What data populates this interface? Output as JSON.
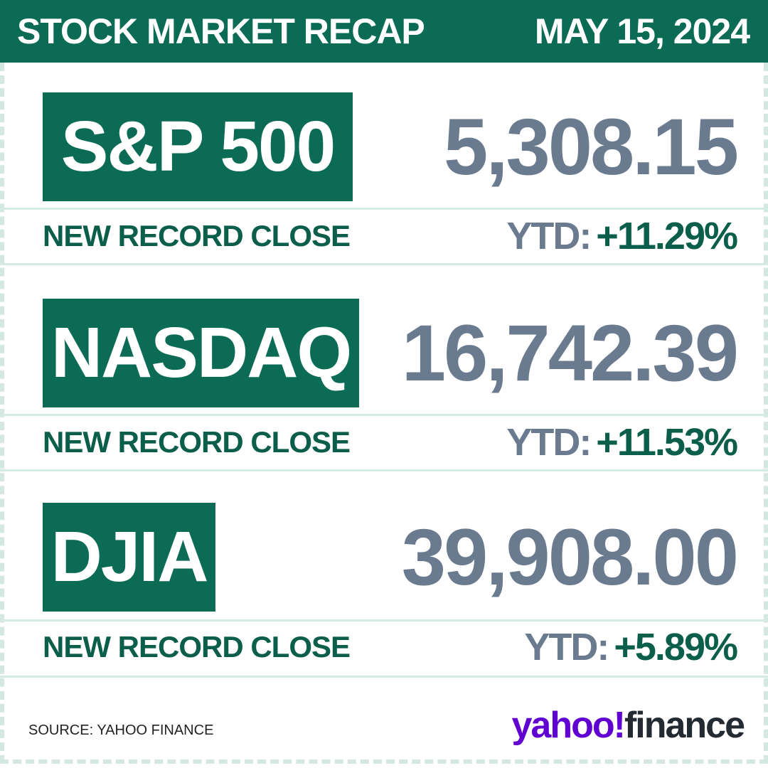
{
  "header": {
    "title": "STOCK MARKET RECAP",
    "date": "MAY 15, 2024"
  },
  "indices": [
    {
      "name": "S&P 500",
      "close": "5,308.15",
      "note": "NEW RECORD CLOSE",
      "ytd_label": "YTD:",
      "ytd": "+11.29%"
    },
    {
      "name": "NASDAQ",
      "close": "16,742.39",
      "note": "NEW RECORD CLOSE",
      "ytd_label": "YTD:",
      "ytd": "+11.53%"
    },
    {
      "name": "DJIA",
      "close": "39,908.00",
      "note": "NEW RECORD CLOSE",
      "ytd_label": "YTD:",
      "ytd": "+5.89%"
    }
  ],
  "footer": {
    "source": "SOURCE: YAHOO FINANCE",
    "logo_brand": "yahoo!",
    "logo_product": "finance"
  }
}
